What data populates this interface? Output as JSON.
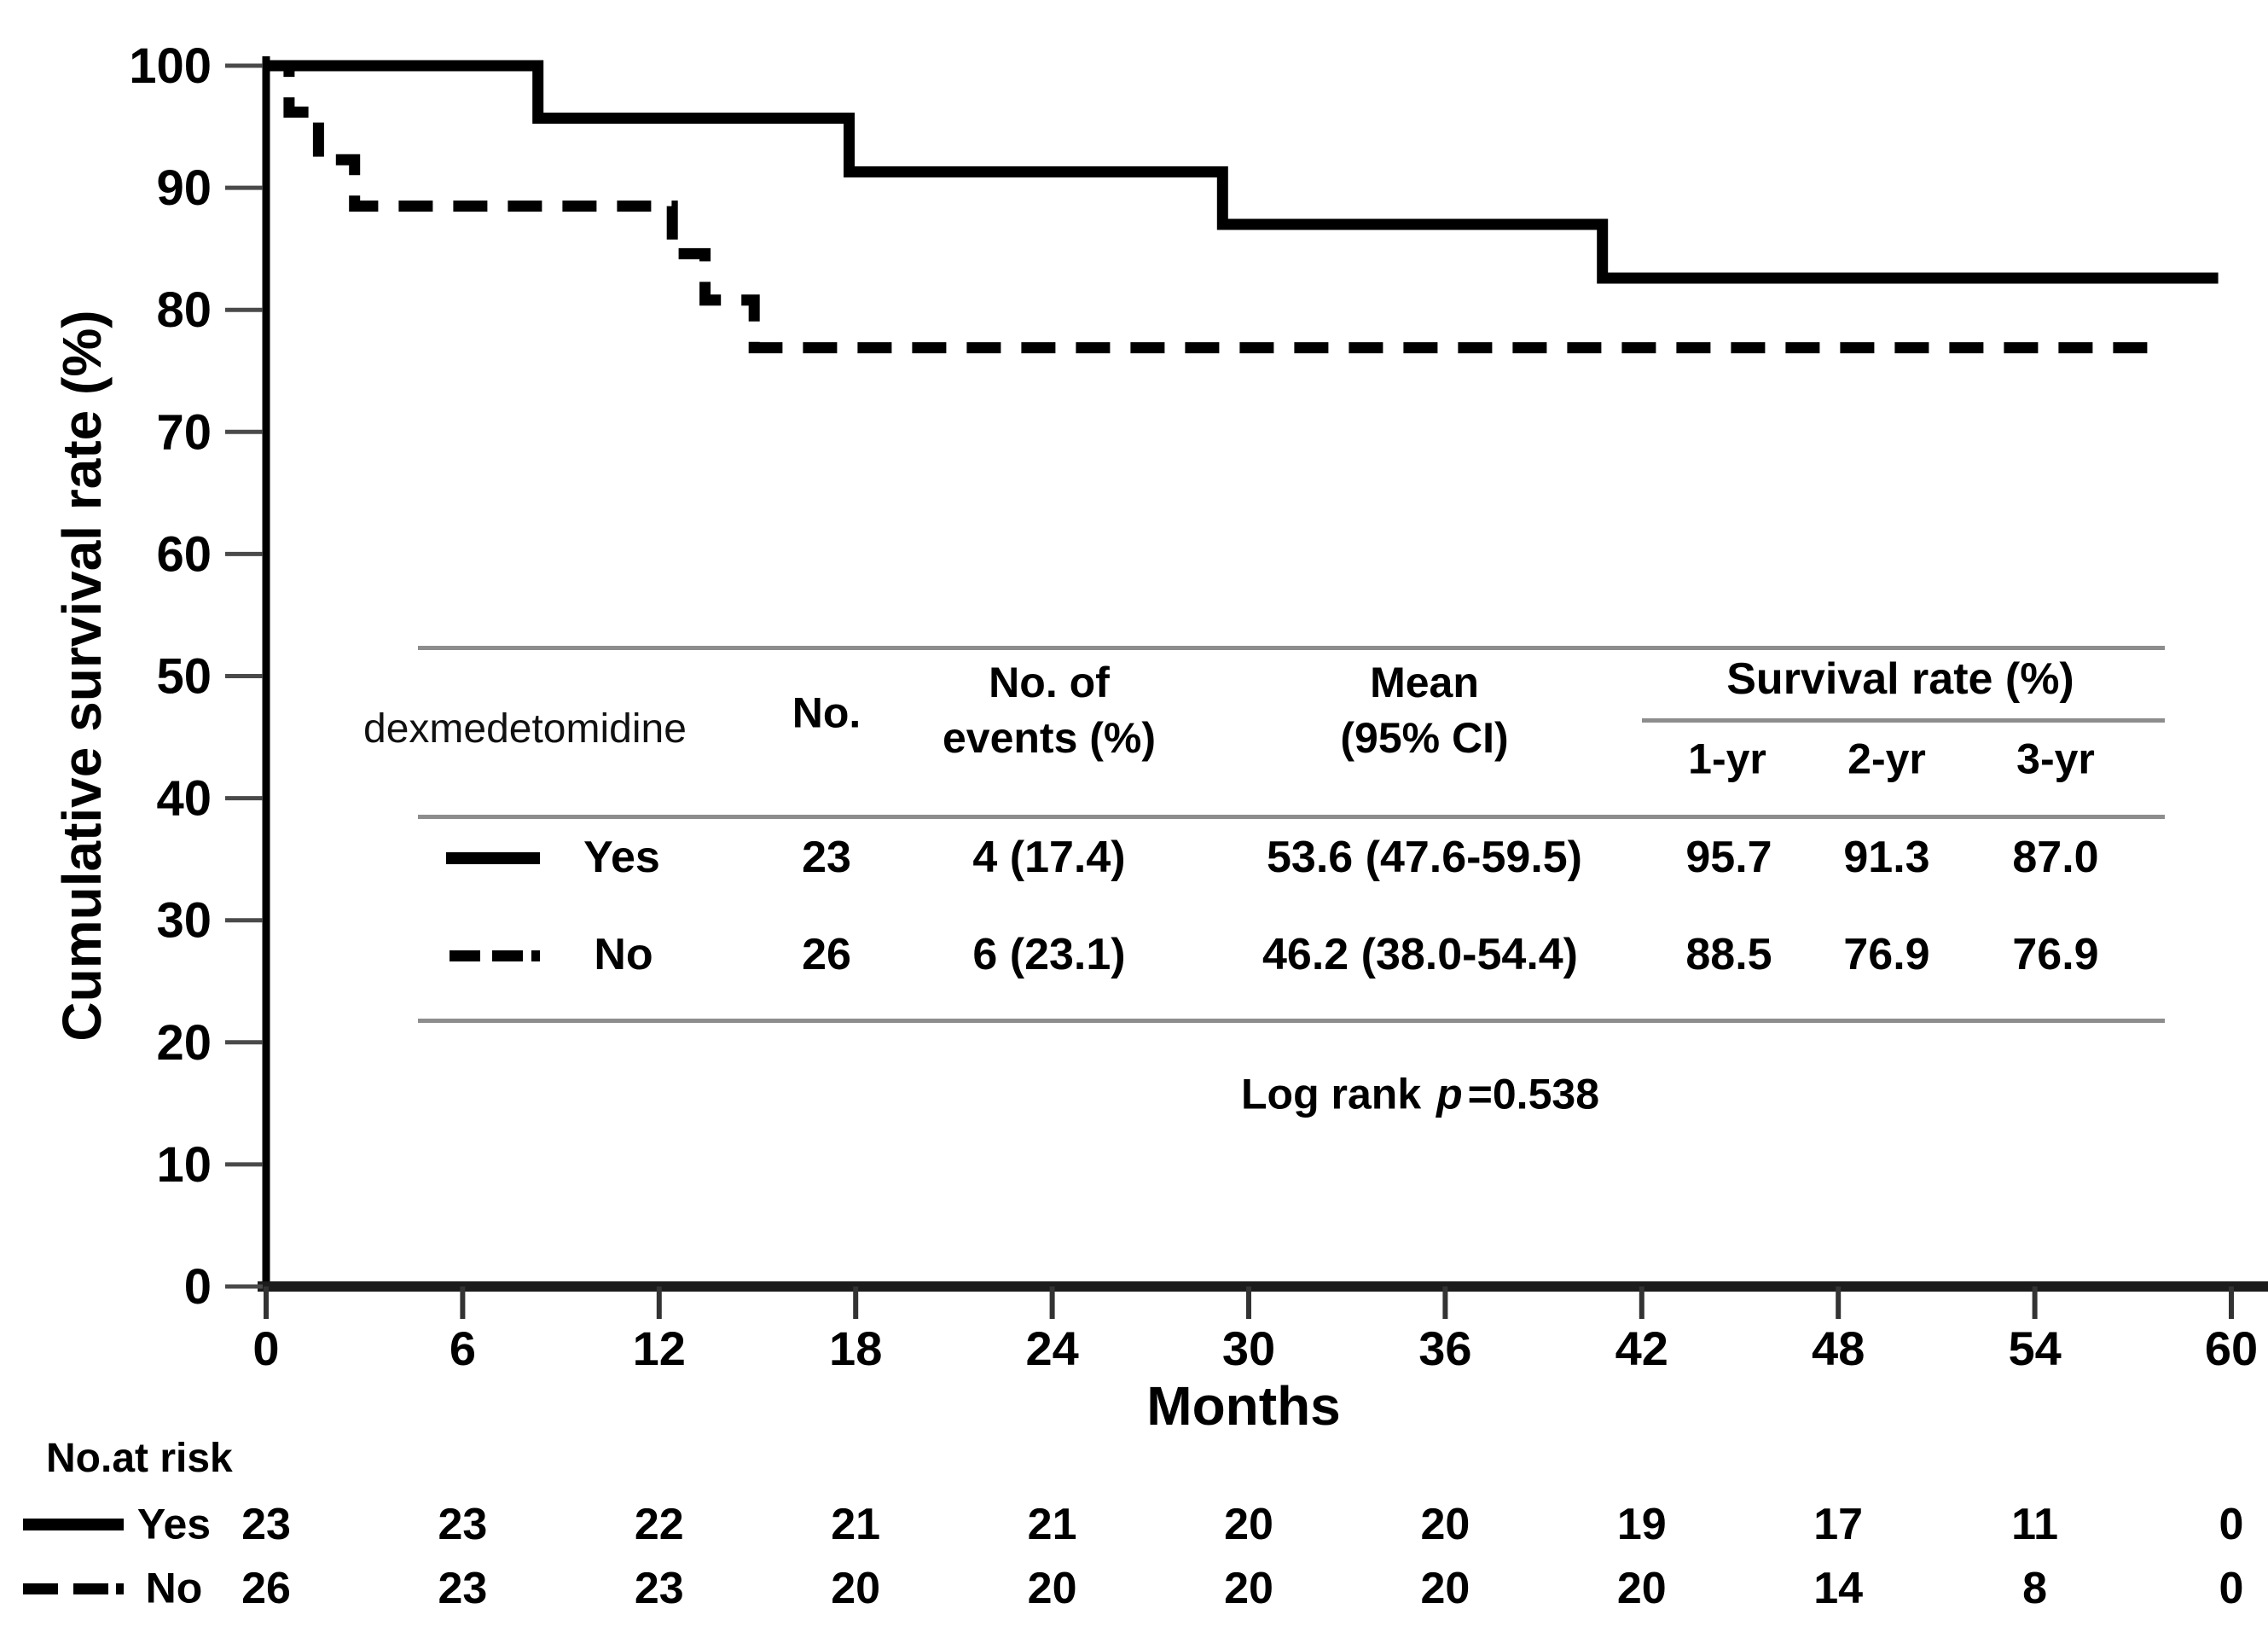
{
  "chart_data": {
    "type": "line",
    "subtype": "kaplan-meier-step",
    "title": "",
    "xlabel": "Months",
    "ylabel": "Cumulative survival rate (%)",
    "xlim": [
      0,
      60
    ],
    "ylim": [
      0,
      100
    ],
    "x_ticks": [
      0,
      6,
      12,
      18,
      24,
      30,
      36,
      42,
      48,
      54,
      60
    ],
    "y_ticks": [
      0,
      10,
      20,
      30,
      40,
      50,
      60,
      70,
      80,
      90,
      100
    ],
    "grid": "off",
    "legend_position": "inset-table",
    "series": [
      {
        "name": "Yes",
        "line_style": "solid",
        "color": "#000000",
        "step_points": [
          [
            0,
            100
          ],
          [
            8.3,
            100
          ],
          [
            8.3,
            95.7
          ],
          [
            17.8,
            95.7
          ],
          [
            17.8,
            91.3
          ],
          [
            29.2,
            91.3
          ],
          [
            29.2,
            87.0
          ],
          [
            40.8,
            87.0
          ],
          [
            40.8,
            82.6
          ],
          [
            59.6,
            82.6
          ]
        ]
      },
      {
        "name": "No",
        "line_style": "dashed",
        "color": "#000000",
        "step_points": [
          [
            0,
            100
          ],
          [
            0.7,
            100
          ],
          [
            0.7,
            96.2
          ],
          [
            1.6,
            96.2
          ],
          [
            1.6,
            92.3
          ],
          [
            2.7,
            92.3
          ],
          [
            2.7,
            88.5
          ],
          [
            12.4,
            88.5
          ],
          [
            12.4,
            84.6
          ],
          [
            13.4,
            84.6
          ],
          [
            13.4,
            80.8
          ],
          [
            14.9,
            80.8
          ],
          [
            14.9,
            76.9
          ],
          [
            57.5,
            76.9
          ]
        ]
      }
    ]
  },
  "inset_table": {
    "group_label": "dexmedetomidine",
    "col_no": "No.",
    "col_events_l1": "No. of",
    "col_events_l2": "events (%)",
    "col_mean_l1": "Mean",
    "col_mean_l2": "(95% CI)",
    "survival_header": "Survival rate (%)",
    "sub_1yr": "1-yr",
    "sub_2yr": "2-yr",
    "sub_3yr": "3-yr",
    "rows": [
      {
        "label": "Yes",
        "line": "solid",
        "n": "23",
        "events": "4 (17.4)",
        "mean": "53.6 (47.6-59.5)",
        "yr1": "95.7",
        "yr2": "91.3",
        "yr3": "87.0"
      },
      {
        "label": "No",
        "line": "dashed",
        "n": "26",
        "events": "6 (23.1)",
        "mean": "46.2 (38.0-54.4)",
        "yr1": "88.5",
        "yr2": "76.9",
        "yr3": "76.9"
      }
    ],
    "logrank_prefix": "Log rank",
    "logrank_p": "p",
    "logrank_value": "=0.538"
  },
  "risk_table": {
    "title": "No.at risk",
    "rows": [
      {
        "label": "Yes",
        "line": "solid",
        "counts": [
          "23",
          "23",
          "22",
          "21",
          "21",
          "20",
          "20",
          "19",
          "17",
          "11",
          "0"
        ]
      },
      {
        "label": "No",
        "line": "dashed",
        "counts": [
          "26",
          "23",
          "23",
          "20",
          "20",
          "20",
          "20",
          "20",
          "14",
          "8",
          "0"
        ]
      }
    ]
  },
  "colors": {
    "curve": "#000000",
    "axis": "#1c1c1c",
    "tick": "#4a4a4a",
    "table_rule": "#8d8d8d",
    "background": "#ffffff"
  }
}
